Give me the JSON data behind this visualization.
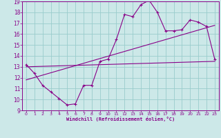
{
  "title": "",
  "xlabel": "Windchill (Refroidissement éolien,°C)",
  "bg_color": "#cce8e8",
  "line_color": "#880088",
  "grid_color": "#99cccc",
  "xlim": [
    -0.5,
    23.5
  ],
  "ylim": [
    9,
    19
  ],
  "xticks": [
    0,
    1,
    2,
    3,
    4,
    5,
    6,
    7,
    8,
    9,
    10,
    11,
    12,
    13,
    14,
    15,
    16,
    17,
    18,
    19,
    20,
    21,
    22,
    23
  ],
  "yticks": [
    9,
    10,
    11,
    12,
    13,
    14,
    15,
    16,
    17,
    18,
    19
  ],
  "main_x": [
    0,
    1,
    2,
    3,
    4,
    5,
    6,
    7,
    8,
    9,
    10,
    11,
    12,
    13,
    14,
    15,
    16,
    17,
    18,
    19,
    20,
    21,
    22,
    23
  ],
  "main_y": [
    13.2,
    12.4,
    11.3,
    10.7,
    10.1,
    9.5,
    9.6,
    11.3,
    11.3,
    13.5,
    13.7,
    15.5,
    17.8,
    17.6,
    18.7,
    19.1,
    18.0,
    16.3,
    16.3,
    16.4,
    17.3,
    17.1,
    16.7,
    13.7
  ],
  "line2_x": [
    0,
    23
  ],
  "line2_y": [
    11.8,
    16.8
  ],
  "line3_x": [
    0,
    23
  ],
  "line3_y": [
    13.0,
    13.5
  ]
}
